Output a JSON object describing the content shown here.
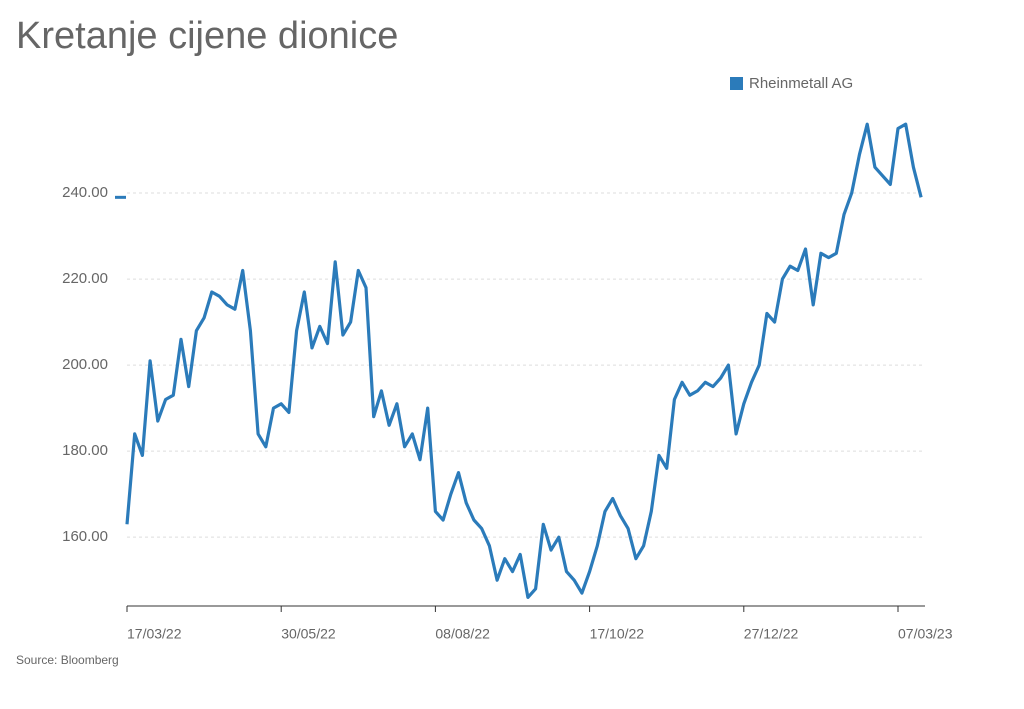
{
  "chart_data": {
    "type": "line",
    "title": "Kretanje cijene dionice",
    "source": "Source: Bloomberg",
    "categories": [
      "17/03/22",
      null,
      null,
      null,
      null,
      null,
      null,
      null,
      null,
      null,
      null,
      null,
      null,
      null,
      null,
      null,
      null,
      null,
      null,
      null,
      "30/05/22",
      null,
      null,
      null,
      null,
      null,
      null,
      null,
      null,
      null,
      null,
      null,
      null,
      null,
      null,
      null,
      null,
      null,
      null,
      null,
      "08/08/22",
      null,
      null,
      null,
      null,
      null,
      null,
      null,
      null,
      null,
      null,
      null,
      null,
      null,
      null,
      null,
      null,
      null,
      null,
      null,
      "17/10/22",
      null,
      null,
      null,
      null,
      null,
      null,
      null,
      null,
      null,
      null,
      null,
      null,
      null,
      null,
      null,
      null,
      null,
      null,
      null,
      "27/12/22",
      null,
      null,
      null,
      null,
      null,
      null,
      null,
      null,
      null,
      null,
      null,
      null,
      null,
      null,
      null,
      null,
      null,
      null,
      null,
      "07/03/23",
      null,
      null,
      null
    ],
    "series": [
      {
        "name": "Rheinmetall AG",
        "color": "#2b7bba",
        "values": [
          163,
          184,
          179,
          201,
          187,
          192,
          193,
          206,
          195,
          208,
          211,
          217,
          216,
          214,
          213,
          222,
          208,
          184,
          181,
          190,
          191,
          189,
          208,
          217,
          204,
          209,
          205,
          224,
          207,
          210,
          222,
          218,
          188,
          194,
          186,
          191,
          181,
          184,
          178,
          190,
          166,
          164,
          170,
          175,
          168,
          164,
          162,
          158,
          150,
          155,
          152,
          156,
          146,
          148,
          163,
          157,
          160,
          152,
          150,
          147,
          152,
          158,
          166,
          169,
          165,
          162,
          155,
          158,
          166,
          179,
          176,
          192,
          196,
          193,
          194,
          196,
          195,
          197,
          200,
          184,
          191,
          196,
          200,
          212,
          210,
          220,
          223,
          222,
          227,
          214,
          226,
          225,
          226,
          235,
          240,
          249,
          256,
          246,
          244,
          242,
          255,
          256,
          246,
          239
        ]
      }
    ],
    "ylim": [
      144,
      260
    ],
    "yticks": [
      {
        "value": 160,
        "label": "160.00"
      },
      {
        "value": 180,
        "label": "180.00"
      },
      {
        "value": 200,
        "label": "200.00"
      },
      {
        "value": 220,
        "label": "220.00"
      },
      {
        "value": 240,
        "label": "240.00"
      }
    ],
    "grid": true,
    "legend": "top-right"
  }
}
